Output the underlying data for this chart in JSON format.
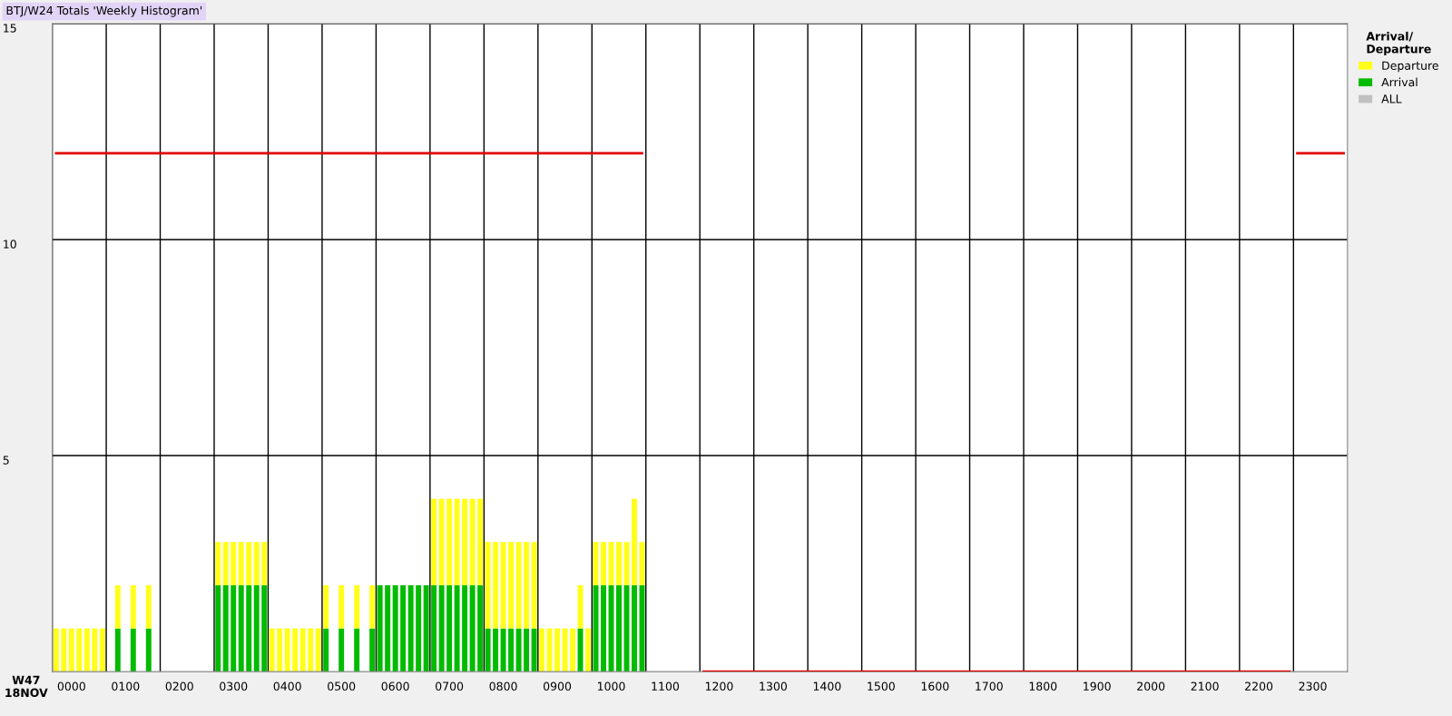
{
  "chart_data": {
    "type": "bar",
    "stacked": true,
    "title": "BTJ/W24 Totals 'Weekly Histogram'",
    "categories": [
      null,
      null,
      "0000",
      null,
      null,
      null,
      null,
      null,
      null,
      "0100",
      null,
      null,
      null,
      null,
      null,
      null,
      "0200",
      null,
      null,
      null,
      null,
      null,
      null,
      "0300",
      null,
      null,
      null,
      null,
      null,
      null,
      "0400",
      null,
      null,
      null,
      null,
      null,
      null,
      "0500",
      null,
      null,
      null,
      null,
      null,
      null,
      "0600",
      null,
      null,
      null,
      null,
      null,
      null,
      "0700",
      null,
      null,
      null,
      null,
      null,
      null,
      "0800",
      null,
      null,
      null,
      null,
      null,
      null,
      "0900",
      null,
      null,
      null,
      null,
      null,
      null,
      "1000",
      null,
      null,
      null,
      null,
      null,
      null,
      "1100",
      null,
      null,
      null,
      null,
      null,
      null,
      "1200",
      null,
      null,
      null,
      null,
      null,
      null,
      "1300",
      null,
      null,
      null,
      null,
      null,
      null,
      "1400",
      null,
      null,
      null,
      null,
      null,
      null,
      "1500",
      null,
      null,
      null,
      null,
      null,
      null,
      "1600",
      null,
      null,
      null,
      null,
      null,
      null,
      "1700",
      null,
      null,
      null,
      null,
      null,
      null,
      "1800",
      null,
      null,
      null,
      null,
      null,
      null,
      "1900",
      null,
      null,
      null,
      null,
      null,
      null,
      "2000",
      null,
      null,
      null,
      null,
      null,
      null,
      "2100",
      null,
      null,
      null,
      null,
      null,
      null,
      "2200",
      null,
      null,
      null,
      null,
      null,
      null,
      "2300",
      null,
      null,
      null,
      null
    ],
    "series": [
      {
        "name": "ALL",
        "color": "#c0c0c0",
        "values": [
          null,
          null,
          null,
          null,
          null,
          null,
          null,
          null,
          null,
          null,
          null,
          null,
          null,
          null,
          null,
          null,
          null,
          null,
          null,
          null,
          null,
          null,
          null,
          null,
          null,
          null,
          null,
          null,
          null,
          null,
          null,
          null,
          null,
          null,
          null,
          null,
          null,
          null,
          null,
          null,
          null,
          null,
          null,
          null,
          null,
          null,
          null,
          null,
          null,
          null,
          null,
          null,
          null,
          null,
          null,
          null,
          null,
          null,
          null,
          null,
          null,
          null,
          null,
          null,
          null,
          null,
          null,
          null,
          null,
          null,
          null,
          null,
          null,
          null,
          null,
          null,
          null,
          null,
          null,
          null,
          null,
          null,
          null,
          null,
          null,
          null,
          null,
          null,
          null,
          null,
          null,
          null,
          null,
          null,
          null,
          null,
          null,
          null,
          null,
          null,
          null,
          null,
          null,
          null,
          null,
          null,
          null,
          null,
          null,
          null,
          null,
          null,
          null,
          null,
          null,
          null,
          null,
          null,
          null,
          null,
          null,
          null,
          null,
          null,
          null,
          null,
          null,
          null,
          null,
          null,
          null,
          null,
          null,
          null,
          null,
          null,
          null,
          null,
          null,
          null,
          null,
          null,
          null,
          null,
          null,
          null,
          null,
          null,
          null,
          null,
          null,
          null,
          null,
          null,
          null,
          null,
          null,
          null,
          null,
          null,
          null,
          null,
          null,
          null,
          null,
          null,
          null,
          null
        ]
      },
      {
        "name": "Arrival",
        "color": "#00bb00",
        "values": [
          null,
          null,
          null,
          null,
          null,
          null,
          null,
          null,
          1,
          null,
          1,
          null,
          1,
          null,
          null,
          null,
          null,
          null,
          null,
          null,
          null,
          2,
          2,
          2,
          2,
          2,
          2,
          2,
          null,
          null,
          null,
          null,
          null,
          null,
          null,
          1,
          null,
          1,
          null,
          1,
          null,
          1,
          2,
          2,
          2,
          2,
          2,
          2,
          2,
          2,
          2,
          2,
          2,
          2,
          2,
          2,
          1,
          1,
          1,
          1,
          1,
          1,
          1,
          null,
          null,
          null,
          null,
          null,
          1,
          null,
          2,
          2,
          2,
          2,
          2,
          2,
          2,
          null,
          null,
          null,
          null,
          null,
          null,
          null,
          null,
          null,
          null,
          null,
          null,
          null,
          null,
          null,
          null,
          null,
          null,
          null,
          null,
          null,
          null,
          null,
          null,
          null,
          null,
          null,
          null,
          null,
          null,
          null,
          null,
          null,
          null,
          null,
          null,
          null,
          null,
          null,
          null,
          null,
          null,
          null,
          null,
          null,
          null,
          null,
          null,
          null,
          null,
          null,
          null,
          null,
          null,
          null,
          null,
          null,
          null,
          null,
          null,
          null,
          null,
          null,
          null,
          null,
          null,
          null,
          null,
          null,
          null,
          null,
          null,
          null,
          null,
          null,
          null,
          null,
          null,
          null,
          null,
          null,
          null,
          null,
          null,
          null,
          null,
          null,
          null,
          null,
          null,
          null
        ]
      },
      {
        "name": "Departure",
        "color": "#ffff1a",
        "values": [
          1,
          1,
          1,
          1,
          1,
          1,
          1,
          null,
          1,
          null,
          1,
          null,
          1,
          null,
          null,
          null,
          null,
          null,
          null,
          null,
          null,
          1,
          1,
          1,
          1,
          1,
          1,
          1,
          1,
          1,
          1,
          1,
          1,
          1,
          1,
          1,
          null,
          1,
          null,
          1,
          null,
          1,
          null,
          null,
          null,
          null,
          null,
          null,
          null,
          2,
          2,
          2,
          2,
          2,
          2,
          2,
          2,
          2,
          2,
          2,
          2,
          2,
          2,
          1,
          1,
          1,
          1,
          1,
          1,
          1,
          1,
          1,
          1,
          1,
          1,
          2,
          1,
          null,
          null,
          null,
          null,
          null,
          null,
          null,
          null,
          null,
          null,
          null,
          null,
          null,
          null,
          null,
          null,
          null,
          null,
          null,
          null,
          null,
          null,
          null,
          null,
          null,
          null,
          null,
          null,
          null,
          null,
          null,
          null,
          null,
          null,
          null,
          null,
          null,
          null,
          null,
          null,
          null,
          null,
          null,
          null,
          null,
          null,
          null,
          null,
          null,
          null,
          null,
          null,
          null,
          null,
          null,
          null,
          null,
          null,
          null,
          null,
          null,
          null,
          null,
          null,
          null,
          null,
          null,
          null,
          null,
          null,
          null,
          null,
          null,
          null,
          null,
          null,
          null,
          null,
          null,
          null,
          null,
          null,
          null,
          null,
          null,
          null,
          null,
          null,
          null,
          null,
          null
        ]
      },
      {
        "type": "line",
        "color": "#e00000",
        "values": [
          12,
          12,
          12,
          12,
          12,
          12,
          12,
          12,
          12,
          12,
          12,
          12,
          12,
          12,
          12,
          12,
          12,
          12,
          12,
          12,
          12,
          12,
          12,
          12,
          12,
          12,
          12,
          12,
          12,
          12,
          12,
          12,
          12,
          12,
          12,
          12,
          12,
          12,
          12,
          12,
          12,
          12,
          12,
          12,
          12,
          12,
          12,
          12,
          12,
          12,
          12,
          12,
          12,
          12,
          12,
          12,
          12,
          12,
          12,
          12,
          12,
          12,
          12,
          12,
          12,
          12,
          12,
          12,
          12,
          12,
          12,
          12,
          12,
          12,
          12,
          12,
          12,
          null,
          null,
          null,
          null,
          null,
          null,
          null,
          null,
          null,
          null,
          null,
          null,
          null,
          null,
          null,
          null,
          null,
          null,
          null,
          null,
          null,
          null,
          null,
          null,
          null,
          null,
          null,
          null,
          null,
          null,
          null,
          null,
          null,
          null,
          null,
          null,
          null,
          null,
          null,
          null,
          null,
          null,
          null,
          null,
          null,
          null,
          null,
          null,
          null,
          null,
          null,
          null,
          null,
          null,
          null,
          null,
          null,
          null,
          null,
          null,
          null,
          null,
          null,
          null,
          null,
          null,
          null,
          null,
          null,
          null,
          null,
          null,
          null,
          null,
          null,
          null,
          null,
          null,
          null,
          null,
          null,
          null,
          null,
          null,
          12,
          12,
          12,
          12,
          12,
          12,
          12
        ]
      },
      {
        "type": "line",
        "color": "#e00000",
        "values": [
          null,
          null,
          null,
          null,
          null,
          null,
          null,
          null,
          null,
          null,
          null,
          null,
          null,
          null,
          null,
          null,
          null,
          null,
          null,
          null,
          null,
          null,
          null,
          null,
          null,
          null,
          null,
          null,
          null,
          null,
          null,
          null,
          null,
          null,
          null,
          null,
          null,
          null,
          null,
          null,
          null,
          null,
          null,
          null,
          null,
          null,
          null,
          null,
          null,
          null,
          null,
          null,
          null,
          null,
          null,
          null,
          null,
          null,
          null,
          null,
          null,
          null,
          null,
          null,
          null,
          null,
          null,
          null,
          null,
          null,
          null,
          null,
          null,
          null,
          null,
          null,
          null,
          null,
          null,
          null,
          null,
          null,
          null,
          null,
          0,
          0,
          0,
          0,
          0,
          0,
          0,
          0,
          0,
          0,
          0,
          0,
          0,
          0,
          0,
          0,
          0,
          0,
          0,
          0,
          0,
          0,
          0,
          0,
          0,
          0,
          0,
          0,
          0,
          0,
          0,
          0,
          0,
          0,
          0,
          0,
          0,
          0,
          0,
          0,
          0,
          0,
          0,
          0,
          0,
          0,
          0,
          0,
          0,
          0,
          0,
          0,
          0,
          0,
          0,
          0,
          0,
          0,
          0,
          0,
          0,
          0,
          0,
          0,
          0,
          0,
          0,
          0,
          0,
          0,
          0,
          0,
          0,
          0,
          0,
          0,
          0,
          null,
          null,
          null,
          null,
          null,
          null,
          null
        ]
      }
    ],
    "ylim": [
      0,
      15
    ],
    "yticks": [
      5,
      10,
      15
    ],
    "grid": true,
    "legend": "top right",
    "legend_title": "Arrival/\nDeparture",
    "annotations": [
      "W47\n18NOV"
    ]
  }
}
